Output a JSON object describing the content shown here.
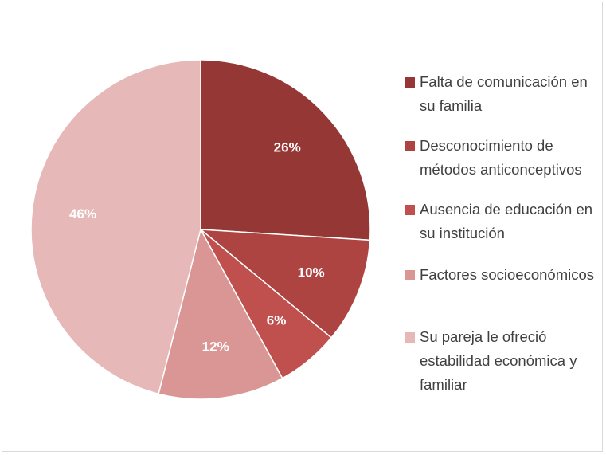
{
  "chart_data": {
    "type": "pie",
    "categories": [
      "Falta de comunicación en su familia",
      "Desconocimiento de métodos anticonceptivos",
      "Ausencia de educación en su institución",
      "Factores socioeconómicos",
      "Su pareja le ofreció estabilidad económica y familiar"
    ],
    "values": [
      26,
      10,
      6,
      12,
      46
    ],
    "value_labels": [
      "26%",
      "10%",
      "6%",
      "12%",
      "46%"
    ],
    "colors": [
      "#953735",
      "#ad4442",
      "#c0504d",
      "#d99694",
      "#e6b9b8"
    ],
    "legend": "right"
  }
}
